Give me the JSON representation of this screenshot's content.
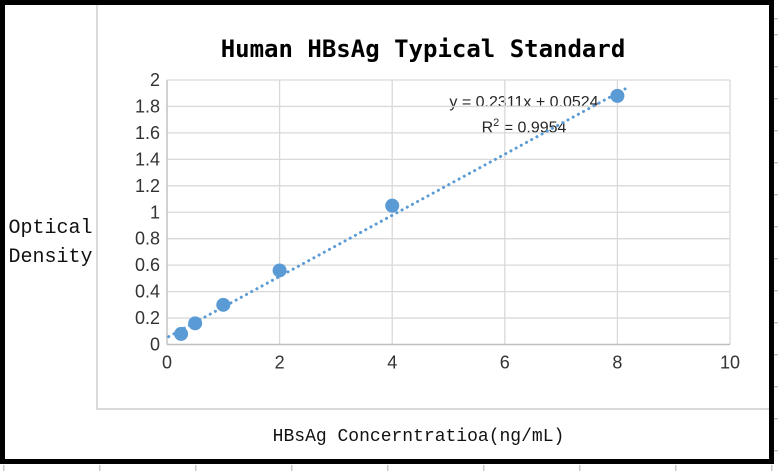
{
  "chart": {
    "title": "Human HBsAg Typical Standard",
    "y_axis_label_line1": "Optical",
    "y_axis_label_line2": "Density",
    "x_axis_label": "HBsAg Concerntratioa(ng/mL)",
    "equation_line1": "y = 0.2311x + 0.0524",
    "equation_r_prefix": "R",
    "equation_r_sup": "2",
    "equation_r_rest": " = 0.9954"
  },
  "chart_data": {
    "type": "scatter",
    "title": "Human HBsAg Typical Standard",
    "xlabel": "HBsAg Concerntratioa(ng/mL)",
    "ylabel": "Optical Density",
    "x": [
      0.25,
      0.5,
      1,
      2,
      4,
      8
    ],
    "y": [
      0.08,
      0.16,
      0.3,
      0.56,
      1.05,
      1.88
    ],
    "trendline": {
      "type": "linear",
      "equation": "y = 0.2311x + 0.0524",
      "r_squared": 0.9954,
      "slope": 0.2311,
      "intercept": 0.0524,
      "style": "dotted",
      "x_range": [
        0.03,
        8.15
      ]
    },
    "xlim": [
      0,
      10
    ],
    "ylim": [
      0,
      2
    ],
    "xticks": [
      "0",
      "2",
      "4",
      "6",
      "8",
      "10"
    ],
    "yticks": [
      "0",
      "0.2",
      "0.4",
      "0.6",
      "0.8",
      "1",
      "1.2",
      "1.4",
      "1.6",
      "1.8",
      "2"
    ],
    "grid": true,
    "legend": false,
    "marker_color": "#5B9BD5",
    "gridline_color": "#D9D9D9",
    "axis_color": "#BFBFBF",
    "tick_label_color": "#333333",
    "equation_color": "#262626",
    "frame_color": "#000000"
  }
}
